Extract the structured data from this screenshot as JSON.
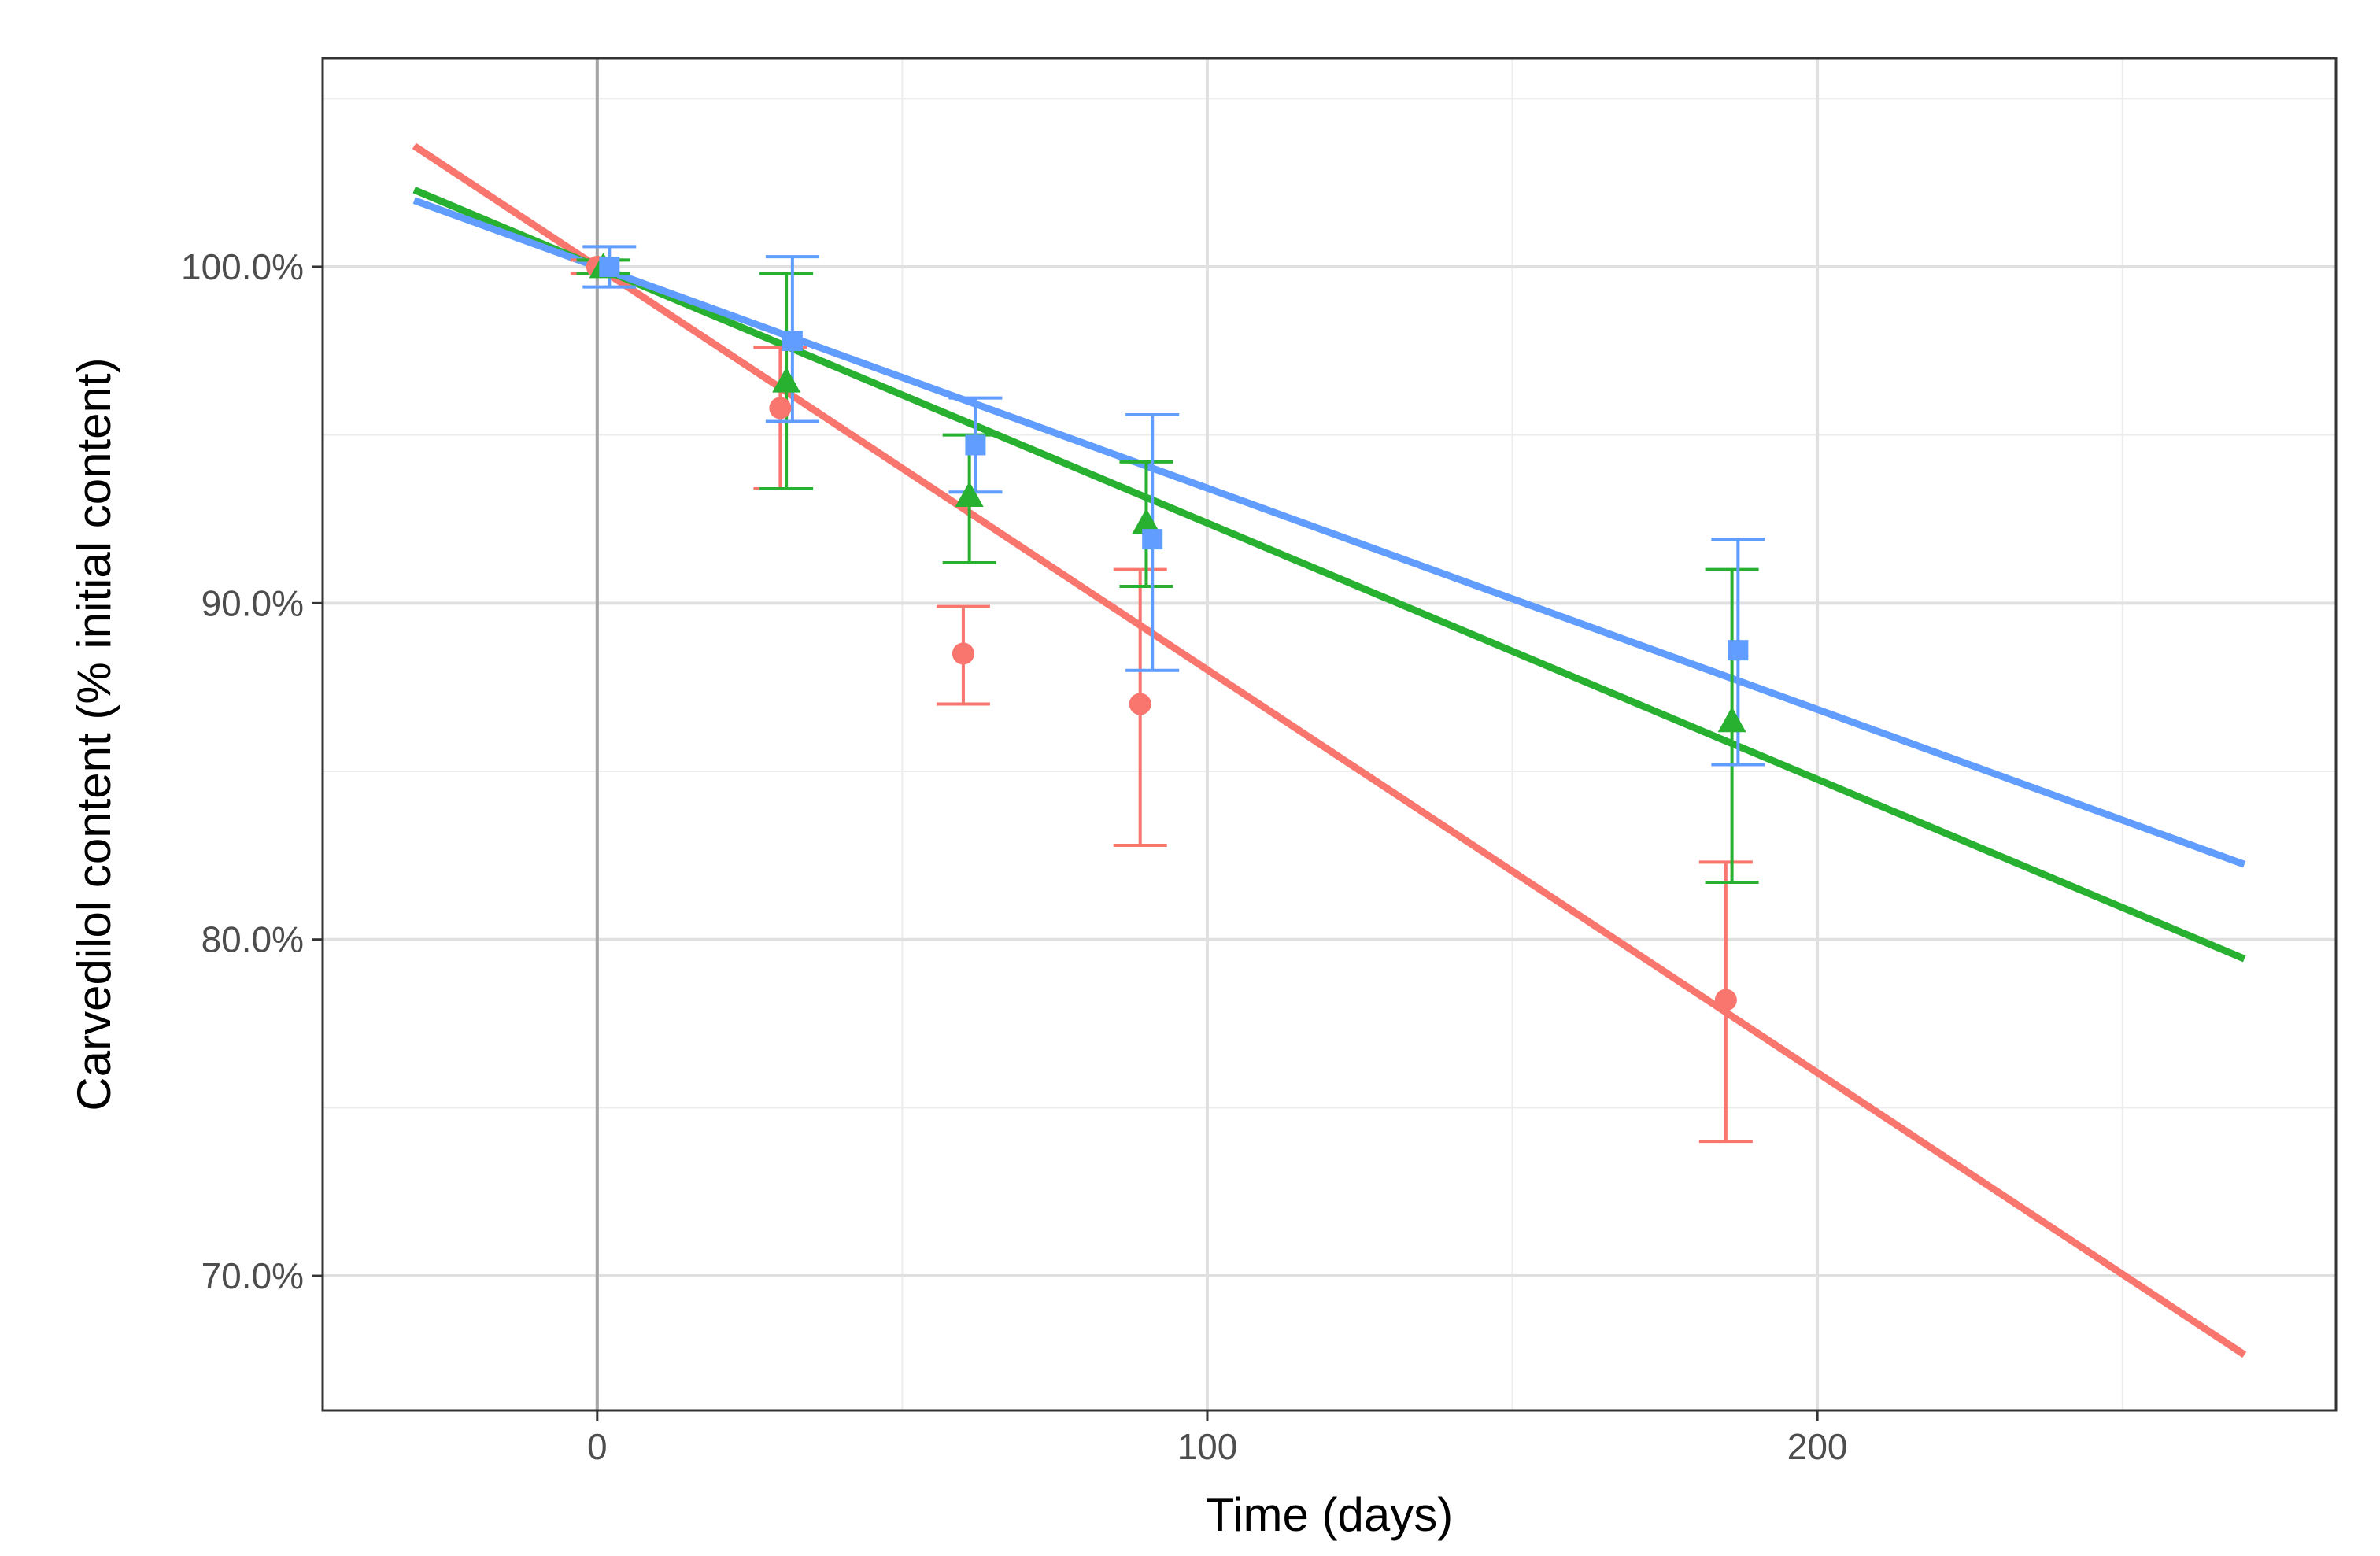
{
  "chart_data": {
    "type": "line",
    "title": "",
    "xlabel": "Time (days)",
    "ylabel": "Carvedilol content (% initial content)",
    "xlim": [
      -45,
      285
    ],
    "ylim": [
      66.0,
      106.2
    ],
    "x_ticks": [
      0,
      100,
      200
    ],
    "x_tick_labels": [
      "0",
      "100",
      "200"
    ],
    "y_ticks": [
      70,
      80,
      90,
      100
    ],
    "y_tick_labels": [
      "70.0%",
      "80.0%",
      "90.0%",
      "100.0%"
    ],
    "x_minor_ticks": [
      50,
      150,
      250
    ],
    "y_minor_ticks": [
      75,
      85,
      95,
      105
    ],
    "vline_x": 0,
    "grid": true,
    "legend": "none",
    "fit_x_range": [
      -30,
      270
    ],
    "series": [
      {
        "name": "red",
        "color": "#F8766D",
        "marker": "circle",
        "fit": {
          "intercept": 100.0,
          "slope": -0.1198
        },
        "points": [
          {
            "x": 0,
            "y": 100.0,
            "lo": 99.8,
            "hi": 100.2
          },
          {
            "x": 30,
            "y": 95.8,
            "lo": 93.4,
            "hi": 97.6
          },
          {
            "x": 60,
            "y": 88.5,
            "lo": 87.0,
            "hi": 89.9
          },
          {
            "x": 89,
            "y": 87.0,
            "lo": 82.8,
            "hi": 91.0
          },
          {
            "x": 185,
            "y": 78.2,
            "lo": 74.0,
            "hi": 82.3
          }
        ]
      },
      {
        "name": "green",
        "color": "#28B030",
        "marker": "triangle",
        "fit": {
          "intercept": 100.0,
          "slope": -0.0762
        },
        "points": [
          {
            "x": 1,
            "y": 100.0,
            "lo": 99.8,
            "hi": 100.2
          },
          {
            "x": 31,
            "y": 96.6,
            "lo": 93.4,
            "hi": 99.8
          },
          {
            "x": 61,
            "y": 93.2,
            "lo": 91.2,
            "hi": 95.0
          },
          {
            "x": 90,
            "y": 92.4,
            "lo": 90.5,
            "hi": 94.2
          },
          {
            "x": 186,
            "y": 86.5,
            "lo": 81.7,
            "hi": 91.0
          }
        ]
      },
      {
        "name": "blue",
        "color": "#619CFF",
        "marker": "square",
        "fit": {
          "intercept": 100.0,
          "slope": -0.0658
        },
        "points": [
          {
            "x": 2,
            "y": 100.0,
            "lo": 99.4,
            "hi": 100.6
          },
          {
            "x": 32,
            "y": 97.8,
            "lo": 95.4,
            "hi": 100.3
          },
          {
            "x": 62,
            "y": 94.7,
            "lo": 93.3,
            "hi": 96.1
          },
          {
            "x": 91,
            "y": 91.9,
            "lo": 88.0,
            "hi": 95.6
          },
          {
            "x": 187,
            "y": 88.6,
            "lo": 85.2,
            "hi": 91.9
          }
        ]
      }
    ]
  }
}
